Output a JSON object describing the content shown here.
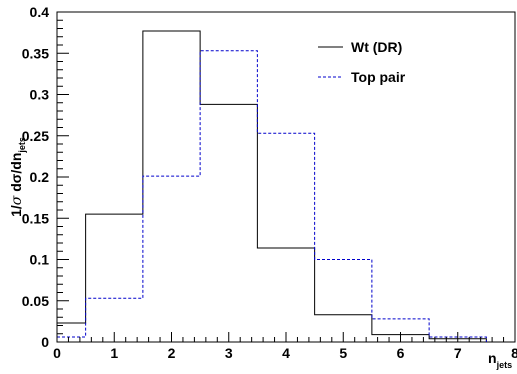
{
  "chart_data": {
    "type": "histogram",
    "xlabel": {
      "main": "n",
      "sub": "jets"
    },
    "ylabel": {
      "prefix": "1/",
      "sigma": "σ",
      "middle": " dσ/dn",
      "sub": "jets"
    },
    "xlim": [
      0,
      8
    ],
    "ylim": [
      0,
      0.4
    ],
    "x_ticks": [
      "0",
      "1",
      "2",
      "3",
      "4",
      "5",
      "6",
      "7",
      "8"
    ],
    "y_ticks": [
      "0",
      "0.05",
      "0.1",
      "0.15",
      "0.2",
      "0.25",
      "0.3",
      "0.35",
      "0.4"
    ],
    "bin_edges": [
      0,
      0.5,
      1.5,
      2.5,
      3.5,
      4.5,
      5.5,
      6.5,
      7.5
    ],
    "grid": false,
    "legend_position": "top-right",
    "series": [
      {
        "name": "Wt (DR)",
        "color": "#000000",
        "dash": "solid",
        "values": [
          0.023,
          0.155,
          0.377,
          0.288,
          0.114,
          0.033,
          0.009,
          0.004
        ]
      },
      {
        "name": "Top pair",
        "color": "#0000cc",
        "dash": "dashed",
        "values": [
          0.006,
          0.053,
          0.201,
          0.353,
          0.253,
          0.1,
          0.028,
          0.006
        ]
      }
    ]
  }
}
